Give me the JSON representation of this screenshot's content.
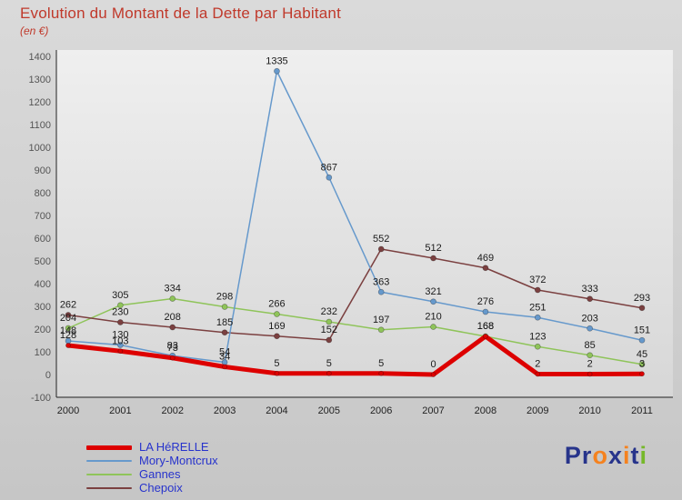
{
  "header": {
    "title": "Evolution du Montant de la Dette par Habitant",
    "subtitle": "(en €)",
    "title_color": "#c0392b"
  },
  "chart_data": {
    "type": "line",
    "x": [
      2000,
      2001,
      2002,
      2003,
      2004,
      2005,
      2006,
      2007,
      2008,
      2009,
      2010,
      2011
    ],
    "ylim": [
      -100,
      1400
    ],
    "ytick_step": 100,
    "grid": false,
    "legend_position": "bottom-left",
    "series": [
      {
        "name": "LA HéRELLE",
        "color": "#dd0000",
        "width": 5,
        "values": [
          128,
          103,
          73,
          34,
          5,
          5,
          5,
          0,
          168,
          2,
          2,
          3
        ]
      },
      {
        "name": "Mory-Montcrux",
        "color": "#6699cc",
        "width": 1.5,
        "values": [
          148,
          130,
          83,
          54,
          1335,
          867,
          363,
          321,
          276,
          251,
          203,
          151
        ]
      },
      {
        "name": "Gannes",
        "color": "#8fc45a",
        "width": 1.5,
        "values": [
          204,
          305,
          334,
          298,
          266,
          232,
          197,
          210,
          168,
          123,
          85,
          45
        ]
      },
      {
        "name": "Chepoix",
        "color": "#7b4040",
        "width": 1.5,
        "values": [
          262,
          230,
          208,
          185,
          169,
          152,
          552,
          512,
          469,
          372,
          333,
          293
        ]
      }
    ]
  },
  "legend": {
    "items": [
      {
        "label": "LA HéRELLE",
        "color": "#dd0000",
        "thickness": 5
      },
      {
        "label": "Mory-Montcrux",
        "color": "#6699cc",
        "thickness": 2
      },
      {
        "label": "Gannes",
        "color": "#8fc45a",
        "thickness": 2
      },
      {
        "label": "Chepoix",
        "color": "#7b4040",
        "thickness": 2
      }
    ]
  },
  "logo": {
    "letters": [
      {
        "ch": "P",
        "color": "#27348b"
      },
      {
        "ch": "r",
        "color": "#27348b"
      },
      {
        "ch": "o",
        "color": "#f5821f"
      },
      {
        "ch": "x",
        "color": "#27348b"
      },
      {
        "ch": "i",
        "color": "#f5821f"
      },
      {
        "ch": "t",
        "color": "#27348b"
      },
      {
        "ch": "i",
        "color": "#76b82a"
      }
    ]
  }
}
